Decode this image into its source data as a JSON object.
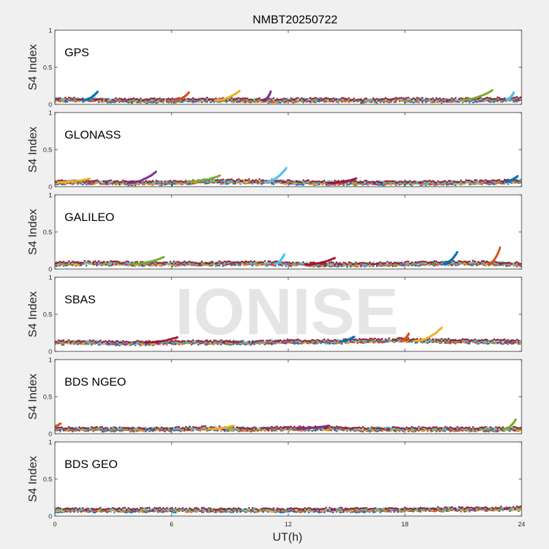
{
  "title": "NMBT20250722",
  "watermark": "IONISE",
  "chart_data": {
    "type": "scatter",
    "title": "NMBT20250722",
    "xlabel": "UT(h)",
    "ylabel": "S4 Index",
    "xlim": [
      0,
      24
    ],
    "ylim": [
      0,
      1
    ],
    "xticks": [
      0,
      6,
      12,
      18,
      24
    ],
    "yticks": [
      0,
      0.5,
      1
    ],
    "xtick_labels": [
      "0",
      "6",
      "12",
      "18",
      "24"
    ],
    "ytick_labels": [
      "0",
      "0.5",
      "1"
    ],
    "series_colors": [
      "#0072BD",
      "#D95319",
      "#EDB120",
      "#7E2F8E",
      "#77AC30",
      "#4DBEEE",
      "#A2142F"
    ],
    "panels": [
      {
        "label": "GPS",
        "baseline": [
          [
            0,
            0.06
          ],
          [
            2,
            0.06
          ],
          [
            4,
            0.05
          ],
          [
            6,
            0.05
          ],
          [
            8,
            0.06
          ],
          [
            10,
            0.05
          ],
          [
            12,
            0.05
          ],
          [
            14,
            0.06
          ],
          [
            16,
            0.05
          ],
          [
            18,
            0.06
          ],
          [
            20,
            0.05
          ],
          [
            22,
            0.06
          ],
          [
            24,
            0.07
          ]
        ],
        "bumps": [
          [
            2.2,
            0.17
          ],
          [
            6.9,
            0.16
          ],
          [
            9.5,
            0.18
          ],
          [
            11.1,
            0.17
          ],
          [
            22.5,
            0.19
          ],
          [
            23.6,
            0.16
          ]
        ]
      },
      {
        "label": "GLONASS",
        "baseline": [
          [
            0,
            0.06
          ],
          [
            2,
            0.06
          ],
          [
            4,
            0.05
          ],
          [
            6,
            0.05
          ],
          [
            8,
            0.07
          ],
          [
            10,
            0.07
          ],
          [
            12,
            0.06
          ],
          [
            14,
            0.05
          ],
          [
            16,
            0.05
          ],
          [
            18,
            0.05
          ],
          [
            20,
            0.05
          ],
          [
            22,
            0.06
          ],
          [
            24,
            0.07
          ]
        ],
        "bumps": [
          [
            1.8,
            0.11
          ],
          [
            5.2,
            0.2
          ],
          [
            8.5,
            0.15
          ],
          [
            11.9,
            0.25
          ],
          [
            15.5,
            0.11
          ],
          [
            23.8,
            0.14
          ]
        ]
      },
      {
        "label": "GALILEO",
        "baseline": [
          [
            0,
            0.07
          ],
          [
            2,
            0.08
          ],
          [
            4,
            0.07
          ],
          [
            6,
            0.07
          ],
          [
            8,
            0.07
          ],
          [
            10,
            0.08
          ],
          [
            12,
            0.07
          ],
          [
            14,
            0.06
          ],
          [
            16,
            0.06
          ],
          [
            18,
            0.07
          ],
          [
            20,
            0.08
          ],
          [
            22,
            0.08
          ],
          [
            24,
            0.06
          ]
        ],
        "bumps": [
          [
            5.6,
            0.16
          ],
          [
            11.8,
            0.2
          ],
          [
            14.4,
            0.15
          ],
          [
            20.7,
            0.23
          ],
          [
            22.9,
            0.29
          ]
        ]
      },
      {
        "label": "SBAS",
        "baseline": [
          [
            0,
            0.12
          ],
          [
            2,
            0.12
          ],
          [
            4,
            0.11
          ],
          [
            6,
            0.12
          ],
          [
            8,
            0.12
          ],
          [
            10,
            0.12
          ],
          [
            12,
            0.13
          ],
          [
            14,
            0.13
          ],
          [
            16,
            0.14
          ],
          [
            18,
            0.15
          ],
          [
            20,
            0.14
          ],
          [
            22,
            0.13
          ],
          [
            24,
            0.13
          ]
        ],
        "bumps": [
          [
            6.3,
            0.19
          ],
          [
            15.4,
            0.2
          ],
          [
            18.2,
            0.24
          ],
          [
            19.9,
            0.32
          ]
        ]
      },
      {
        "label": "BDS NGEO",
        "baseline": [
          [
            0,
            0.06
          ],
          [
            2,
            0.06
          ],
          [
            4,
            0.06
          ],
          [
            6,
            0.06
          ],
          [
            8,
            0.07
          ],
          [
            10,
            0.06
          ],
          [
            12,
            0.07
          ],
          [
            14,
            0.07
          ],
          [
            16,
            0.06
          ],
          [
            18,
            0.06
          ],
          [
            20,
            0.06
          ],
          [
            22,
            0.06
          ],
          [
            24,
            0.06
          ]
        ],
        "bumps": [
          [
            0.3,
            0.14
          ],
          [
            9.2,
            0.11
          ],
          [
            14.1,
            0.11
          ],
          [
            23.7,
            0.19
          ]
        ]
      },
      {
        "label": "BDS GEO",
        "baseline": [
          [
            0,
            0.08
          ],
          [
            4,
            0.08
          ],
          [
            8,
            0.08
          ],
          [
            12,
            0.08
          ],
          [
            16,
            0.08
          ],
          [
            20,
            0.09
          ],
          [
            24,
            0.1
          ]
        ],
        "bumps": []
      }
    ]
  }
}
